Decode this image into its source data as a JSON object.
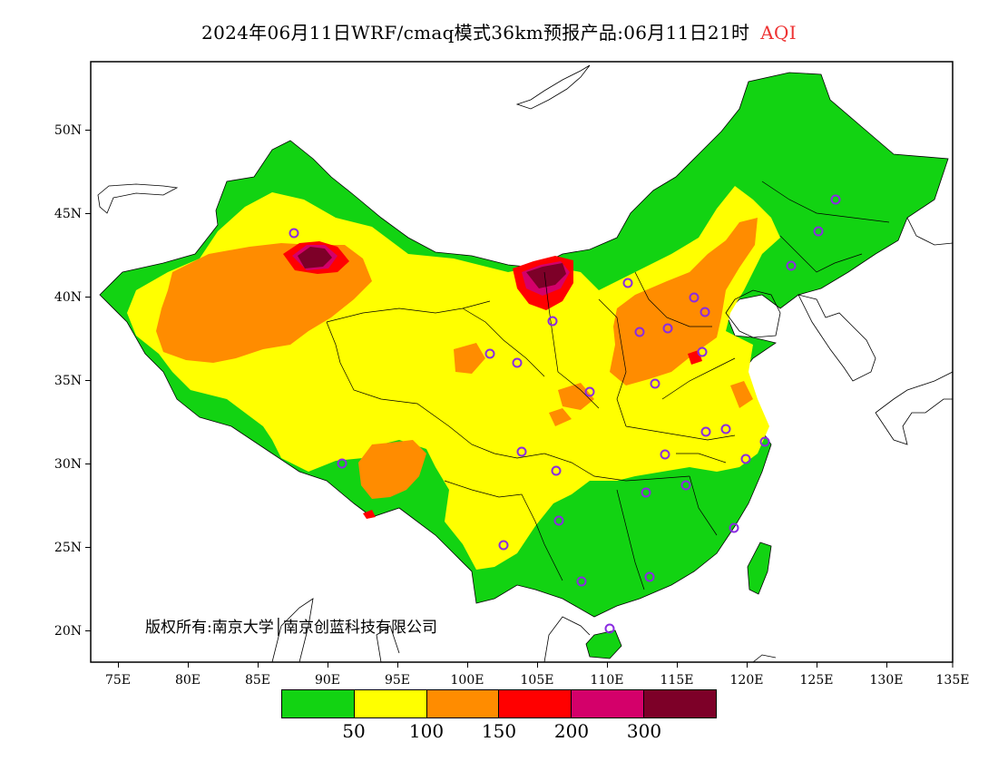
{
  "title": {
    "main": "2024年06月11日WRF/cmaq模式36km预报产品:06月11日21时",
    "variable": "AQI"
  },
  "axes": {
    "x_ticks": [
      "75E",
      "80E",
      "85E",
      "90E",
      "95E",
      "100E",
      "105E",
      "110E",
      "115E",
      "120E",
      "125E",
      "130E",
      "135E"
    ],
    "y_ticks": [
      "50N",
      "45N",
      "40N",
      "35N",
      "30N",
      "25N",
      "20N"
    ]
  },
  "copyright": "版权所有:南京大学│南京创蓝科技有限公司",
  "legend": {
    "colors": [
      "#12d312",
      "#ffff00",
      "#ff8c00",
      "#ff0000",
      "#d4006a",
      "#7d0028"
    ],
    "labels": [
      "50",
      "100",
      "150",
      "200",
      "300"
    ]
  },
  "colors": {
    "good": "#12d312",
    "moderate": "#ffff00",
    "unhealthy_sensitive": "#ff8c00",
    "unhealthy": "#ff0000",
    "very_unhealthy": "#d4006a",
    "hazardous": "#7d0028",
    "station_marker": "#8a2be2"
  }
}
